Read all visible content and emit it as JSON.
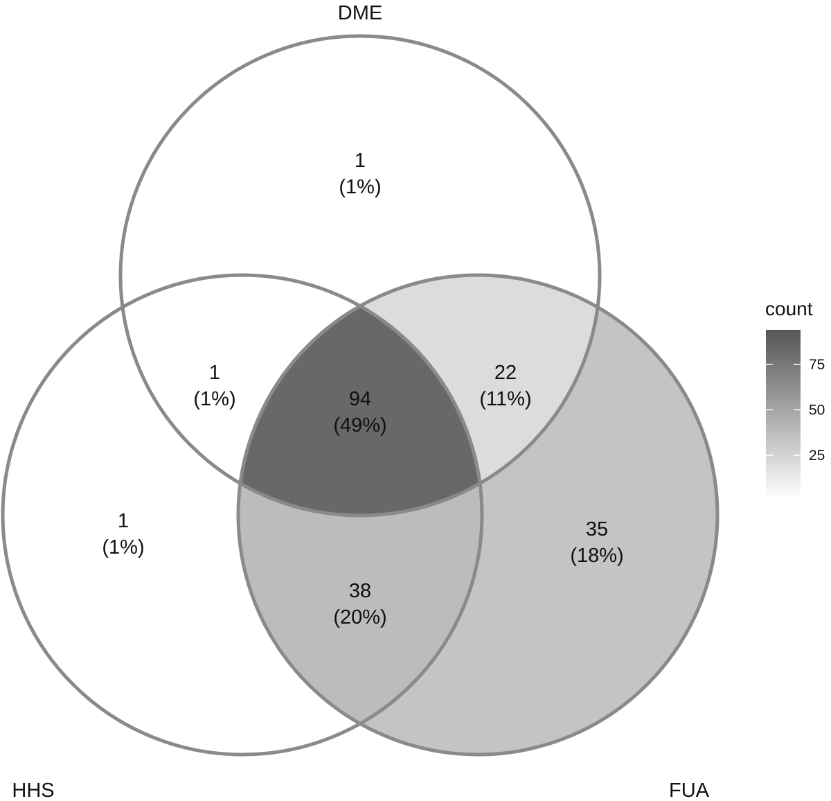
{
  "sets": [
    {
      "key": "DME",
      "label": "DME"
    },
    {
      "key": "HHS",
      "label": "HHS"
    },
    {
      "key": "FUA",
      "label": "FUA"
    }
  ],
  "regions": [
    {
      "key": "dme_only",
      "sets": [
        "DME"
      ],
      "count": "1",
      "percent": "(1%)",
      "value": 1
    },
    {
      "key": "dme_hhs",
      "sets": [
        "DME",
        "HHS"
      ],
      "count": "1",
      "percent": "(1%)",
      "value": 1
    },
    {
      "key": "dme_hhs_fua",
      "sets": [
        "DME",
        "HHS",
        "FUA"
      ],
      "count": "94",
      "percent": "(49%)",
      "value": 94
    },
    {
      "key": "dme_fua",
      "sets": [
        "DME",
        "FUA"
      ],
      "count": "22",
      "percent": "(11%)",
      "value": 22
    },
    {
      "key": "hhs_only",
      "sets": [
        "HHS"
      ],
      "count": "1",
      "percent": "(1%)",
      "value": 1
    },
    {
      "key": "hhs_fua",
      "sets": [
        "HHS",
        "FUA"
      ],
      "count": "38",
      "percent": "(20%)",
      "value": 38
    },
    {
      "key": "fua_only",
      "sets": [
        "FUA"
      ],
      "count": "35",
      "percent": "(18%)",
      "value": 35
    }
  ],
  "legend": {
    "title": "count",
    "ticks": [
      "25",
      "50",
      "75"
    ],
    "tick_values": [
      25,
      50,
      75
    ],
    "range": [
      1,
      94
    ],
    "color_low": "#ffffff",
    "color_high": "#555555"
  },
  "colors": {
    "outline": "#8a8a8a",
    "dme_hhs_fua": "#686868",
    "hhs_fua": "#bcbcbc",
    "fua_only": "#c4c4c4",
    "dme_fua": "#dcdcdc",
    "low": "#ffffff"
  }
}
